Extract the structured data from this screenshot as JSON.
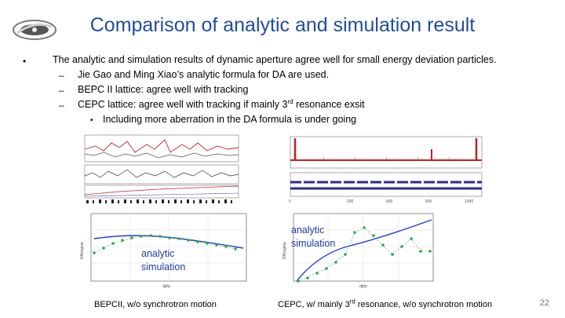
{
  "slide": {
    "title": "Comparison of analytic and simulation result",
    "page_number": "22"
  },
  "bullets": {
    "main": {
      "marker": "•",
      "text": "The analytic and simulation results of dynamic aperture agree well for small energy deviation  particles."
    },
    "subs": [
      {
        "marker": "–",
        "text": "Jie Gao and Ming Xiao’s analytic formula for DA are used."
      },
      {
        "marker": "–",
        "text": "BEPC II lattice: agree well with tracking"
      },
      {
        "marker": "–",
        "pre": "CEPC lattice: agree well with tracking if mainly 3",
        "sup": "rd",
        "post": " resonance exsit"
      }
    ],
    "subsub": {
      "marker": "•",
      "text": "Including more aberration in the DA formula is under going"
    }
  },
  "figures": {
    "left": {
      "legend_line1": "analytic",
      "legend_line2": "simulation",
      "caption": "BEPCII, w/o synchrotron motion",
      "ylabel": "DA/sigma",
      "xlabel": "dp/p"
    },
    "right": {
      "legend_line1": "analytic",
      "legend_line2": "simulation",
      "caption_pre": "CEPC, w/ mainly 3",
      "caption_sup": "rd",
      "caption_post": " resonance,  w/o synchrotron motion",
      "ylabel": "DA/sigma",
      "xlabel": "dp/p"
    }
  },
  "colors": {
    "title": "#1f4e9c",
    "analytic": "#1f3fd0",
    "simulation": "#2ea84a",
    "red_trace": "#c81e1e"
  }
}
